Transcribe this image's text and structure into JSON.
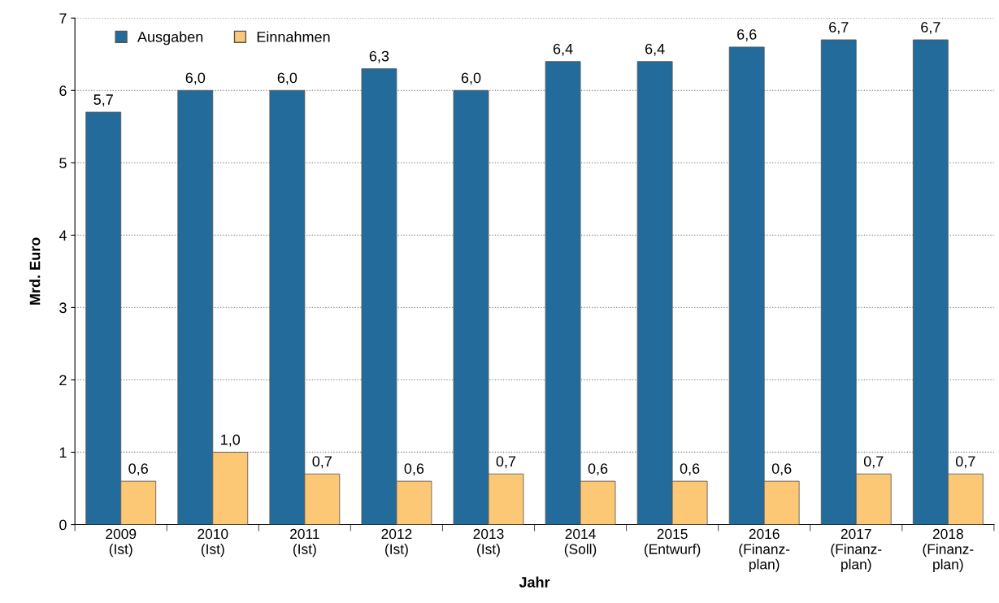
{
  "chart_data": {
    "type": "bar",
    "xlabel": "Jahr",
    "ylabel": "Mrd. Euro",
    "categories": [
      "2009\n(Ist)",
      "2010\n(Ist)",
      "2011\n(Ist)",
      "2012\n(Ist)",
      "2013\n(Ist)",
      "2014\n(Soll)",
      "2015\n(Entwurf)",
      "2016\n(Finanz-\nplan)",
      "2017\n(Finanz-\nplan)",
      "2018\n(Finanz-\nplan)"
    ],
    "series": [
      {
        "name": "Ausgaben",
        "color": "#236b9b",
        "values": [
          5.7,
          6.0,
          6.0,
          6.3,
          6.0,
          6.4,
          6.4,
          6.6,
          6.7,
          6.7
        ],
        "value_labels": [
          "5,7",
          "6,0",
          "6,0",
          "6,3",
          "6,0",
          "6,4",
          "6,4",
          "6,6",
          "6,7",
          "6,7"
        ]
      },
      {
        "name": "Einnahmen",
        "color": "#fdc876",
        "values": [
          0.6,
          1.0,
          0.7,
          0.6,
          0.7,
          0.6,
          0.6,
          0.6,
          0.7,
          0.7
        ],
        "value_labels": [
          "0,6",
          "1,0",
          "0,7",
          "0,6",
          "0,7",
          "0,6",
          "0,6",
          "0,6",
          "0,7",
          "0,7"
        ]
      }
    ],
    "ylim": [
      0,
      7
    ],
    "yticks": [
      0,
      1,
      2,
      3,
      4,
      5,
      6,
      7
    ],
    "grid": "y",
    "legend": "top left"
  }
}
